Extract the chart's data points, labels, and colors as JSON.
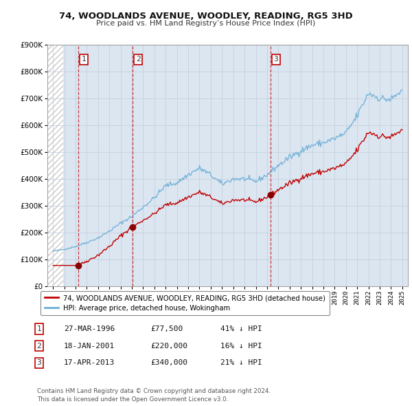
{
  "title": "74, WOODLANDS AVENUE, WOODLEY, READING, RG5 3HD",
  "subtitle": "Price paid vs. HM Land Registry’s House Price Index (HPI)",
  "transactions": [
    {
      "num": 1,
      "date": 1996.22,
      "price": 77500,
      "label": "27-MAR-1996",
      "price_str": "£77,500",
      "hpi_rel": "41% ↓ HPI"
    },
    {
      "num": 2,
      "date": 2001.05,
      "price": 220000,
      "label": "18-JAN-2001",
      "price_str": "£220,000",
      "hpi_rel": "16% ↓ HPI"
    },
    {
      "num": 3,
      "date": 2013.29,
      "price": 340000,
      "label": "17-APR-2013",
      "price_str": "£340,000",
      "hpi_rel": "21% ↓ HPI"
    }
  ],
  "hpi_line_color": "#6baed6",
  "price_line_color": "#c00000",
  "dashed_line_color": "#c00000",
  "marker_color": "#8b0000",
  "number_box_color": "#c00000",
  "background_color": "#dce6f1",
  "chart_bg": "#ffffff",
  "ylim": [
    0,
    900000
  ],
  "xlim_left": 1993.5,
  "xlim_right": 2025.5,
  "footer": "Contains HM Land Registry data © Crown copyright and database right 2024.\nThis data is licensed under the Open Government Licence v3.0."
}
